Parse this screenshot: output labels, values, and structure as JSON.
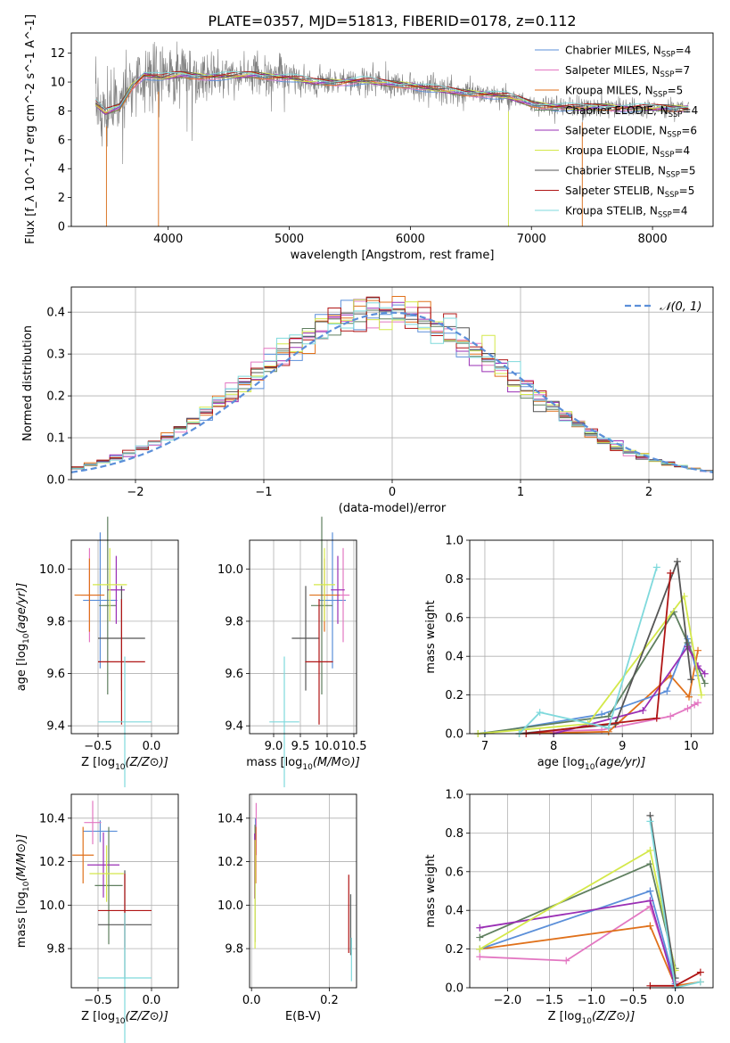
{
  "figure_title": "PLATE=0357, MJD=51813, FIBERID=0178, z=0.112",
  "colors": {
    "Chabrier MILES": "#5b8fd9",
    "Salpeter MILES": "#e377c2",
    "Kroupa MILES": "#e0711b",
    "Chabrier ELODIE": "#5f7f5f",
    "Salpeter ELODIE": "#9a2fb5",
    "Kroupa ELODIE": "#d4e84a",
    "Chabrier STELIB": "#555555",
    "Salpeter STELIB": "#b01515",
    "Kroupa STELIB": "#7fd9dc",
    "observed": "#808080",
    "gaussian": "#5b8fd9"
  },
  "chart_data": [
    {
      "id": "spectrum",
      "type": "line",
      "xlabel": "wavelength [Angstrom, rest frame]",
      "ylabel": "Flux [f_λ 10^-17 erg cm^-2 s^-1 A^-1]",
      "xlim": [
        3200,
        8500
      ],
      "ylim": [
        0,
        13.4
      ],
      "xticks": [
        4000,
        5000,
        6000,
        7000,
        8000
      ],
      "yticks": [
        0,
        2,
        4,
        6,
        8,
        10,
        12
      ],
      "grid": false,
      "legend_position": "right",
      "legend": [
        {
          "label": "Chabrier MILES, N",
          "sub": "SSP",
          "suffix": "=4"
        },
        {
          "label": "Salpeter MILES, N",
          "sub": "SSP",
          "suffix": "=7"
        },
        {
          "label": "Kroupa MILES, N",
          "sub": "SSP",
          "suffix": "=5"
        },
        {
          "label": "Chabrier ELODIE, N",
          "sub": "SSP",
          "suffix": "=4"
        },
        {
          "label": "Salpeter ELODIE, N",
          "sub": "SSP",
          "suffix": "=6"
        },
        {
          "label": "Kroupa ELODIE, N",
          "sub": "SSP",
          "suffix": "=4"
        },
        {
          "label": "Chabrier STELIB, N",
          "sub": "SSP",
          "suffix": "=5"
        },
        {
          "label": "Salpeter STELIB, N",
          "sub": "SSP",
          "suffix": "=5"
        },
        {
          "label": "Kroupa STELIB, N",
          "sub": "SSP",
          "suffix": "=4"
        }
      ],
      "continuum": [
        [
          3400,
          8.5
        ],
        [
          3480,
          7.9
        ],
        [
          3600,
          8.3
        ],
        [
          3700,
          9.7
        ],
        [
          3800,
          10.5
        ],
        [
          3950,
          10.3
        ],
        [
          4100,
          10.5
        ],
        [
          4300,
          10.4
        ],
        [
          4500,
          10.4
        ],
        [
          4700,
          10.5
        ],
        [
          5000,
          10.3
        ],
        [
          5200,
          10.0
        ],
        [
          5400,
          10.0
        ],
        [
          5600,
          10.1
        ],
        [
          5800,
          9.9
        ],
        [
          6000,
          9.8
        ],
        [
          6200,
          9.5
        ],
        [
          6400,
          9.3
        ],
        [
          6600,
          9.2
        ],
        [
          6800,
          9.0
        ],
        [
          7000,
          8.5
        ],
        [
          7200,
          8.3
        ],
        [
          7400,
          8.2
        ],
        [
          7600,
          8.3
        ],
        [
          7800,
          8.2
        ],
        [
          8000,
          8.2
        ],
        [
          8300,
          8.2
        ]
      ],
      "drops": [
        [
          3490,
          0.2
        ],
        [
          3920,
          0.0
        ],
        [
          6810,
          0.0
        ],
        [
          7420,
          0.0
        ]
      ]
    },
    {
      "id": "residuals",
      "type": "histogram",
      "xlabel": "(data-model)/error",
      "ylabel": "Normed distribution",
      "xlim": [
        -2.5,
        2.5
      ],
      "ylim": [
        0,
        0.46
      ],
      "xticks": [
        -2,
        -1,
        0,
        1,
        2
      ],
      "yticks": [
        0.0,
        0.1,
        0.2,
        0.3,
        0.4
      ],
      "grid": true,
      "legend_position": "top-right",
      "legend_label": "𝒩(0, 1)",
      "bin_width": 0.1
    },
    {
      "id": "age_vs_Z",
      "type": "errorbar",
      "xlabel": "Z [log10(Z/Z⊙)]",
      "ylabel": "age  [log10(age/yr)]",
      "xlim": [
        -0.75,
        0.25
      ],
      "ylim": [
        9.37,
        10.11
      ],
      "xticks": [
        -0.5,
        0.0
      ],
      "yticks": [
        9.4,
        9.6,
        9.8,
        10.0
      ],
      "grid": true,
      "points": [
        {
          "model": "Chabrier MILES",
          "x": -0.48,
          "y": 9.88,
          "xerr": 0.16,
          "yerr": 0.26
        },
        {
          "model": "Salpeter MILES",
          "x": -0.58,
          "y": 9.9,
          "xerr": 0.08,
          "yerr": 0.18
        },
        {
          "model": "Kroupa MILES",
          "x": -0.58,
          "y": 9.9,
          "xerr": 0.14,
          "yerr": 0.14
        },
        {
          "model": "Chabrier ELODIE",
          "x": -0.41,
          "y": 9.86,
          "xerr": 0.08,
          "yerr": 0.34
        },
        {
          "model": "Salpeter ELODIE",
          "x": -0.33,
          "y": 9.92,
          "xerr": 0.08,
          "yerr": 0.13
        },
        {
          "model": "Kroupa ELODIE",
          "x": -0.39,
          "y": 9.94,
          "xerr": 0.16,
          "yerr": 0.14
        },
        {
          "model": "Chabrier STELIB",
          "x": -0.28,
          "y": 9.735,
          "xerr": 0.22,
          "yerr": 0.2
        },
        {
          "model": "Salpeter STELIB",
          "x": -0.28,
          "y": 9.645,
          "xerr": 0.22,
          "yerr": 0.24
        },
        {
          "model": "Kroupa STELIB",
          "x": -0.25,
          "y": 9.415,
          "xerr": 0.25,
          "yerr": 0.25
        }
      ]
    },
    {
      "id": "age_vs_mass",
      "type": "errorbar",
      "xlabel": "mass [log10(M/M⊙)]",
      "ylabel": "",
      "xlim": [
        8.55,
        10.55
      ],
      "ylim": [
        9.37,
        10.11
      ],
      "xticks": [
        9.0,
        9.5,
        10.0,
        10.5
      ],
      "yticks": [
        9.4,
        9.6,
        9.8,
        10.0
      ],
      "grid": true,
      "points": [
        {
          "model": "Chabrier MILES",
          "x": 10.1,
          "y": 9.88,
          "xerr": 0.25,
          "yerr": 0.26
        },
        {
          "model": "Salpeter MILES",
          "x": 10.3,
          "y": 9.9,
          "xerr": 0.12,
          "yerr": 0.18
        },
        {
          "model": "Kroupa MILES",
          "x": 9.95,
          "y": 9.9,
          "xerr": 0.28,
          "yerr": 0.14
        },
        {
          "model": "Chabrier ELODIE",
          "x": 9.9,
          "y": 9.86,
          "xerr": 0.2,
          "yerr": 0.34
        },
        {
          "model": "Salpeter ELODIE",
          "x": 10.2,
          "y": 9.92,
          "xerr": 0.13,
          "yerr": 0.13
        },
        {
          "model": "Kroupa ELODIE",
          "x": 9.95,
          "y": 9.94,
          "xerr": 0.2,
          "yerr": 0.14
        },
        {
          "model": "Chabrier STELIB",
          "x": 9.6,
          "y": 9.735,
          "xerr": 0.26,
          "yerr": 0.2
        },
        {
          "model": "Salpeter STELIB",
          "x": 9.85,
          "y": 9.645,
          "xerr": 0.26,
          "yerr": 0.24
        },
        {
          "model": "Kroupa STELIB",
          "x": 9.2,
          "y": 9.415,
          "xerr": 0.28,
          "yerr": 0.25
        }
      ]
    },
    {
      "id": "weight_vs_age",
      "type": "line",
      "xlabel": "age  [log10(age/yr)]",
      "ylabel": "mass weight",
      "xlim": [
        6.78,
        10.32
      ],
      "ylim": [
        0,
        1.0
      ],
      "xticks": [
        7,
        8,
        9,
        10
      ],
      "yticks": [
        0.0,
        0.2,
        0.4,
        0.6,
        0.8,
        1.0
      ],
      "grid": true,
      "series": [
        {
          "model": "Salpeter MILES",
          "x": [
            7.8,
            8.7,
            9.7,
            9.95,
            10.05,
            10.1
          ],
          "y": [
            0.01,
            0.02,
            0.09,
            0.13,
            0.15,
            0.16
          ]
        },
        {
          "model": "Kroupa MILES",
          "x": [
            7.5,
            8.8,
            9.7,
            9.97,
            10.1
          ],
          "y": [
            0.0,
            0.01,
            0.3,
            0.19,
            0.43
          ]
        },
        {
          "model": "Chabrier MILES",
          "x": [
            7.0,
            8.7,
            9.65,
            9.95,
            10.1
          ],
          "y": [
            0.0,
            0.1,
            0.22,
            0.49,
            0.3
          ]
        },
        {
          "model": "Chabrier ELODIE",
          "x": [
            6.9,
            8.8,
            9.75,
            9.95,
            10.2
          ],
          "y": [
            0.0,
            0.09,
            0.63,
            0.47,
            0.26
          ]
        },
        {
          "model": "Salpeter ELODIE",
          "x": [
            8.0,
            9.3,
            9.95,
            10.1,
            10.2
          ],
          "y": [
            0.0,
            0.12,
            0.45,
            0.35,
            0.31
          ]
        },
        {
          "model": "Kroupa ELODIE",
          "x": [
            6.9,
            8.5,
            9.9,
            10.15
          ],
          "y": [
            0.0,
            0.05,
            0.71,
            0.2
          ]
        },
        {
          "model": "Chabrier STELIB",
          "x": [
            7.5,
            8.9,
            9.8,
            10.0
          ],
          "y": [
            0.0,
            0.05,
            0.89,
            0.28
          ]
        },
        {
          "model": "Salpeter STELIB",
          "x": [
            7.6,
            9.5,
            9.7
          ],
          "y": [
            0.0,
            0.08,
            0.83
          ]
        },
        {
          "model": "Kroupa STELIB",
          "x": [
            7.5,
            7.8,
            8.8,
            9.5
          ],
          "y": [
            0.0,
            0.11,
            0.03,
            0.86
          ]
        }
      ]
    },
    {
      "id": "mass_vs_Z",
      "type": "errorbar",
      "xlabel": "Z [log10(Z/Z⊙)]",
      "ylabel": "mass [log10(M/M⊙)]",
      "xlim": [
        -0.75,
        0.25
      ],
      "ylim": [
        9.62,
        10.51
      ],
      "xticks": [
        -0.5,
        0.0
      ],
      "yticks": [
        9.8,
        10.0,
        10.2,
        10.4
      ],
      "grid": true,
      "points": [
        {
          "model": "Chabrier MILES",
          "x": -0.48,
          "y": 10.34,
          "xerr": 0.16,
          "yerr": 0.05
        },
        {
          "model": "Salpeter MILES",
          "x": -0.55,
          "y": 10.38,
          "xerr": 0.08,
          "yerr": 0.1
        },
        {
          "model": "Kroupa MILES",
          "x": -0.64,
          "y": 10.23,
          "xerr": 0.1,
          "yerr": 0.13
        },
        {
          "model": "Chabrier ELODIE",
          "x": -0.4,
          "y": 10.09,
          "xerr": 0.13,
          "yerr": 0.27
        },
        {
          "model": "Salpeter ELODIE",
          "x": -0.45,
          "y": 10.185,
          "xerr": 0.15,
          "yerr": 0.15
        },
        {
          "model": "Kroupa ELODIE",
          "x": -0.42,
          "y": 10.145,
          "xerr": 0.16,
          "yerr": 0.13
        },
        {
          "model": "Chabrier STELIB",
          "x": -0.25,
          "y": 9.91,
          "xerr": 0.25,
          "yerr": 0.25
        },
        {
          "model": "Salpeter STELIB",
          "x": -0.25,
          "y": 9.975,
          "xerr": 0.25,
          "yerr": 0.17
        },
        {
          "model": "Kroupa STELIB",
          "x": -0.25,
          "y": 9.665,
          "xerr": 0.25,
          "yerr": 0.3
        }
      ]
    },
    {
      "id": "mass_vs_ebv",
      "type": "errorbar",
      "xlabel": "E(B-V)",
      "ylabel": "",
      "xlim": [
        -0.005,
        0.27
      ],
      "ylim": [
        9.62,
        10.51
      ],
      "xticks": [
        0.0,
        0.2
      ],
      "yticks": [
        9.8,
        10.0,
        10.2,
        10.4
      ],
      "grid": true,
      "points": [
        {
          "model": "Chabrier MILES",
          "x": 0.01,
          "y": 10.3,
          "xerr": 0.0,
          "yerr": 0.1
        },
        {
          "model": "Salpeter MILES",
          "x": 0.012,
          "y": 10.35,
          "xerr": 0.0,
          "yerr": 0.12
        },
        {
          "model": "Kroupa MILES",
          "x": 0.011,
          "y": 10.23,
          "xerr": 0.0,
          "yerr": 0.13
        },
        {
          "model": "Chabrier ELODIE",
          "x": 0.009,
          "y": 10.1,
          "xerr": 0.0,
          "yerr": 0.27
        },
        {
          "model": "Salpeter ELODIE",
          "x": 0.008,
          "y": 10.18,
          "xerr": 0.0,
          "yerr": 0.15
        },
        {
          "model": "Kroupa ELODIE",
          "x": 0.009,
          "y": 10.05,
          "xerr": 0.0,
          "yerr": 0.25
        },
        {
          "model": "Chabrier STELIB",
          "x": 0.255,
          "y": 9.91,
          "xerr": 0.0,
          "yerr": 0.14
        },
        {
          "model": "Salpeter STELIB",
          "x": 0.25,
          "y": 9.96,
          "xerr": 0.0,
          "yerr": 0.18
        },
        {
          "model": "Kroupa STELIB",
          "x": 0.257,
          "y": 9.75,
          "xerr": 0.0,
          "yerr": 0.1
        }
      ]
    },
    {
      "id": "weight_vs_Z",
      "type": "line",
      "xlabel": "Z [log10(Z/Z⊙)]",
      "ylabel": "mass weight",
      "xlim": [
        -2.45,
        0.45
      ],
      "ylim": [
        0,
        1.0
      ],
      "xticks": [
        -2.0,
        -1.5,
        -1.0,
        -0.5,
        0.0
      ],
      "yticks": [
        0.0,
        0.2,
        0.4,
        0.6,
        0.8,
        1.0
      ],
      "grid": true,
      "series": [
        {
          "model": "Salpeter MILES",
          "x": [
            -2.33,
            -1.3,
            -0.3,
            0.0
          ],
          "y": [
            0.16,
            0.14,
            0.42,
            0.03
          ]
        },
        {
          "model": "Kroupa MILES",
          "x": [
            -2.33,
            -0.3,
            0.0,
            0.3
          ],
          "y": [
            0.2,
            0.32,
            0.01,
            0.03
          ]
        },
        {
          "model": "Chabrier MILES",
          "x": [
            -2.33,
            -0.3,
            0.0
          ],
          "y": [
            0.2,
            0.5,
            0.02
          ]
        },
        {
          "model": "Chabrier ELODIE",
          "x": [
            -2.33,
            -0.3,
            0.0
          ],
          "y": [
            0.26,
            0.64,
            0.1
          ]
        },
        {
          "model": "Salpeter ELODIE",
          "x": [
            -2.33,
            -0.3,
            0.0
          ],
          "y": [
            0.31,
            0.45,
            0.0
          ]
        },
        {
          "model": "Kroupa ELODIE",
          "x": [
            -2.33,
            -0.3,
            0.0
          ],
          "y": [
            0.2,
            0.71,
            0.09
          ]
        },
        {
          "model": "Chabrier STELIB",
          "x": [
            -0.3,
            0.0
          ],
          "y": [
            0.89,
            0.05
          ]
        },
        {
          "model": "Salpeter STELIB",
          "x": [
            -0.3,
            0.0,
            0.3
          ],
          "y": [
            0.01,
            0.01,
            0.08
          ]
        },
        {
          "model": "Kroupa STELIB",
          "x": [
            -0.3,
            0.0,
            0.3
          ],
          "y": [
            0.86,
            0.0,
            0.03
          ]
        }
      ]
    }
  ]
}
